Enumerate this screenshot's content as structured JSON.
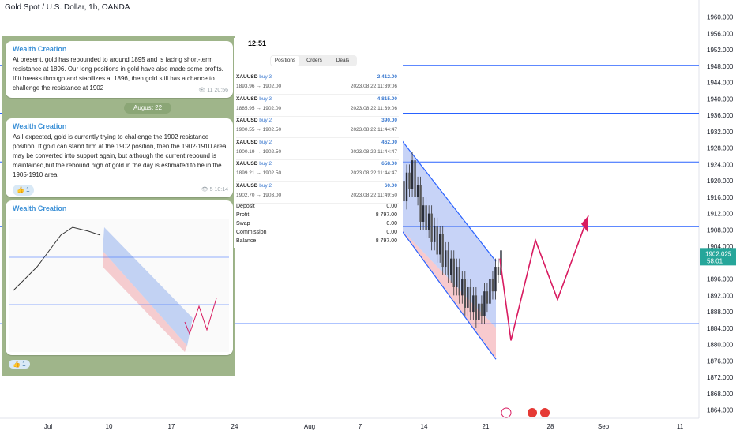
{
  "header": {
    "title": "Gold Spot / U.S. Dollar, 1h, OANDA"
  },
  "chart_data": {
    "type": "candlestick",
    "price_axis": [
      "1960.000",
      "1956.000",
      "1952.000",
      "1948.000",
      "1944.000",
      "1940.000",
      "1936.000",
      "1932.000",
      "1928.000",
      "1924.000",
      "1920.000",
      "1916.000",
      "1912.000",
      "1908.000",
      "1904.000",
      "1900.000",
      "1896.000",
      "1892.000",
      "1888.000",
      "1884.000",
      "1880.000",
      "1876.000",
      "1872.000",
      "1868.000",
      "1864.000"
    ],
    "date_axis": [
      "Jul",
      "10",
      "17",
      "24",
      "Aug",
      "7",
      "14",
      "21",
      "28",
      "Sep",
      "11"
    ],
    "ylim": [
      1862,
      1963
    ],
    "horizontal_levels": [
      1948.2,
      1936.5,
      1924.6,
      1908.8,
      1885.1
    ],
    "current_price": "1902.025",
    "countdown": "58:01",
    "dotted_level": 1901.6,
    "accent_green": "#26a69a",
    "line_color": "#2962ff",
    "projection_color": "#d81b60",
    "channel": {
      "upper": [
        [
          0,
          1930.8
        ],
        [
          1,
          1900.3
        ]
      ],
      "lower": [
        [
          0,
          1908.8
        ],
        [
          1,
          1876.4
        ]
      ]
    },
    "projection_path": [
      1901.0,
      1881.0,
      1905.5,
      1891.0,
      1911.5
    ],
    "candles_close": [
      1920,
      1915,
      1922,
      1918,
      1925,
      1916,
      1919,
      1910,
      1914,
      1908,
      1912,
      1905,
      1909,
      1902,
      1907,
      1899,
      1903,
      1897,
      1901,
      1894,
      1899,
      1892,
      1896,
      1889,
      1894,
      1888,
      1892,
      1886,
      1890,
      1887,
      1893,
      1890,
      1896,
      1893,
      1899,
      1897,
      1903
    ]
  },
  "telegram": {
    "messages": [
      {
        "author": "Wealth Creation",
        "text": "At present, gold has rebounded to around 1895 and is facing short-term resistance at 1896. Our long positions in gold have also made some profits. If it breaks through and stabilizes at 1896, then gold still has a chance to challenge the resistance at 1902",
        "views": "11",
        "time": "20:56"
      },
      {
        "author": "Wealth Creation",
        "text": "As I expected, gold is currently trying to challenge the 1902 resistance position. If gold can stand firm at the 1902 position, then the 1902-1910 area may be converted into support again, but although the current rebound is maintained,but the rebound high of gold in the day is estimated to be in the 1905-1910 area",
        "views": "5",
        "time": "10:14",
        "reaction": "👍 1"
      },
      {
        "author": "Wealth Creation",
        "reaction": "👍 1"
      }
    ],
    "date_divider": "August 22"
  },
  "phone": {
    "time": "12:51",
    "tabs": [
      "Positions",
      "Orders",
      "Deals"
    ],
    "positions": [
      {
        "sym": "XAUUSD",
        "dir": "buy 3",
        "prices": "1893.96 → 1902.00",
        "profit": "2 412.00",
        "time": "2023.08.22 11:39:06"
      },
      {
        "sym": "XAUUSD",
        "dir": "buy 3",
        "prices": "1885.95 → 1902.00",
        "profit": "4 815.00",
        "time": "2023.08.22 11:39:06"
      },
      {
        "sym": "XAUUSD",
        "dir": "buy 2",
        "prices": "1900.55 → 1902.50",
        "profit": "390.00",
        "time": "2023.08.22 11:44:47"
      },
      {
        "sym": "XAUUSD",
        "dir": "buy 2",
        "prices": "1900.19 → 1902.50",
        "profit": "462.00",
        "time": "2023.08.22 11:44:47"
      },
      {
        "sym": "XAUUSD",
        "dir": "buy 2",
        "prices": "1899.21 → 1902.50",
        "profit": "658.00",
        "time": "2023.08.22 11:44:47"
      },
      {
        "sym": "XAUUSD",
        "dir": "buy 2",
        "prices": "1902.70 → 1903.00",
        "profit": "60.00",
        "time": "2023.08.22 11:49:50"
      }
    ],
    "summary": [
      {
        "label": "Deposit",
        "value": "0.00"
      },
      {
        "label": "Profit",
        "value": "8 797.00"
      },
      {
        "label": "Swap",
        "value": "0.00"
      },
      {
        "label": "Commission",
        "value": "0.00"
      },
      {
        "label": "Balance",
        "value": "8 797.00"
      }
    ]
  }
}
